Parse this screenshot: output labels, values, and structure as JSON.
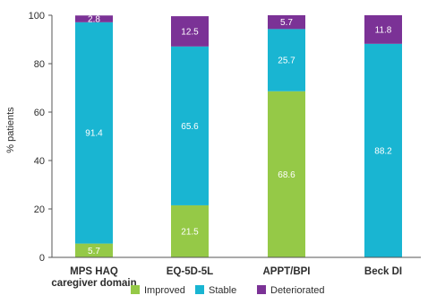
{
  "chart_data": {
    "type": "bar",
    "stacked": true,
    "categories": [
      [
        "MPS HAQ",
        "caregiver domain"
      ],
      [
        "EQ-5D-5L"
      ],
      [
        "APPT/BPI"
      ],
      [
        "Beck DI"
      ]
    ],
    "series": [
      {
        "name": "Improved",
        "color": "#95c947",
        "values": [
          5.7,
          21.5,
          68.6,
          0
        ],
        "labels": [
          "5.7",
          "21.5",
          "68.6",
          ""
        ]
      },
      {
        "name": "Stable",
        "color": "#19b5d2",
        "values": [
          91.4,
          65.6,
          25.7,
          88.2
        ],
        "labels": [
          "91.4",
          "65.6",
          "25.7",
          "88.2"
        ]
      },
      {
        "name": "Deteriorated",
        "color": "#7b3296",
        "values": [
          2.8,
          12.5,
          5.7,
          11.8
        ],
        "labels": [
          "2.8",
          "12.5",
          "5.7",
          "11.8"
        ]
      }
    ],
    "ylabel": "% patients",
    "ylim": [
      0,
      100
    ],
    "yticks": [
      "0",
      "20",
      "40",
      "60",
      "80",
      "100"
    ],
    "grid": false,
    "legend": "bottom"
  }
}
